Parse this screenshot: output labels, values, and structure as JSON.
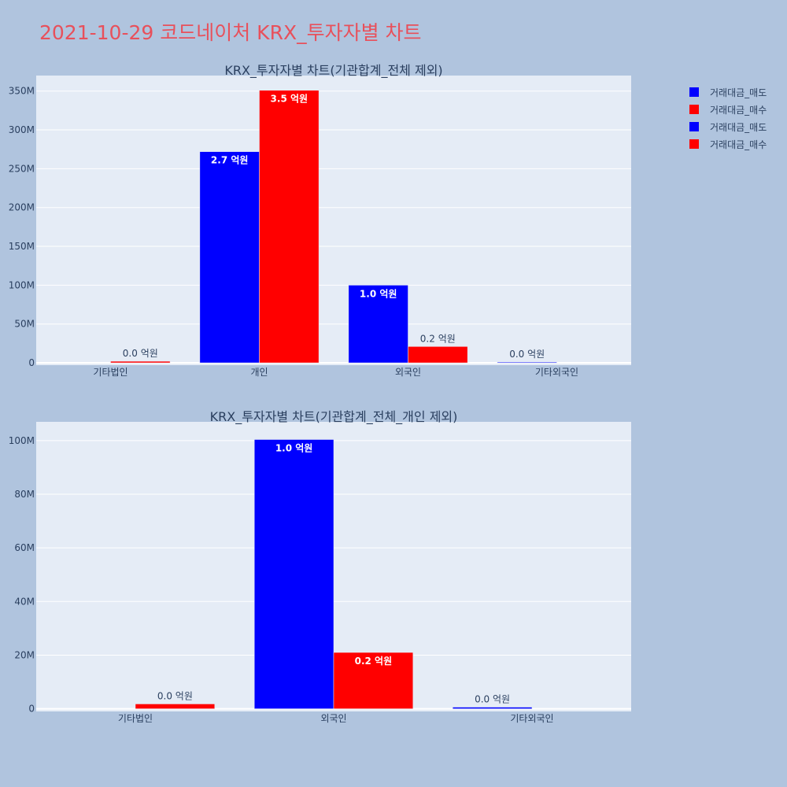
{
  "page": {
    "title": "2021-10-29 코드네이처 KRX_투자자별 차트"
  },
  "legend": {
    "items": [
      {
        "label": "거래대금_매도",
        "color": "#0000ff"
      },
      {
        "label": "거래대금_매수",
        "color": "#ff0000"
      },
      {
        "label": "거래대금_매도",
        "color": "#0000ff"
      },
      {
        "label": "거래대금_매수",
        "color": "#ff0000"
      }
    ]
  },
  "chart_data": [
    {
      "type": "bar",
      "title": "KRX_투자자별 차트(기관합계_전체 제외)",
      "categories": [
        "기타법인",
        "개인",
        "외국인",
        "기타외국인"
      ],
      "series": [
        {
          "name": "거래대금_매도",
          "color": "#0000ff",
          "values": [
            0,
            272000000,
            100000000,
            1000000
          ],
          "labels": [
            "",
            "2.7 억원",
            "1.0 억원",
            "0.0 억원"
          ]
        },
        {
          "name": "거래대금_매수",
          "color": "#ff0000",
          "values": [
            2000000,
            351000000,
            21000000,
            0
          ],
          "labels": [
            "0.0 억원",
            "3.5 억원",
            "0.2 억원",
            ""
          ]
        }
      ],
      "ylim": [
        -3000000,
        370000000
      ],
      "yticks": [
        0,
        50000000,
        100000000,
        150000000,
        200000000,
        250000000,
        300000000,
        350000000
      ],
      "ytick_labels": [
        "0",
        "50M",
        "100M",
        "150M",
        "200M",
        "250M",
        "300M",
        "350M"
      ],
      "grid": true,
      "legend_position": "right"
    },
    {
      "type": "bar",
      "title": "KRX_투자자별 차트(기관합계_전체_개인 제외)",
      "categories": [
        "기타법인",
        "외국인",
        "기타외국인"
      ],
      "series": [
        {
          "name": "거래대금_매도",
          "color": "#0000ff",
          "values": [
            0,
            100400000,
            600000
          ],
          "labels": [
            "",
            "1.0 억원",
            "0.0 억원"
          ]
        },
        {
          "name": "거래대금_매수",
          "color": "#ff0000",
          "values": [
            1800000,
            21000000,
            0
          ],
          "labels": [
            "0.0 억원",
            "0.2 억원",
            ""
          ]
        }
      ],
      "ylim": [
        -1000000,
        107000000
      ],
      "yticks": [
        0,
        20000000,
        40000000,
        60000000,
        80000000,
        100000000
      ],
      "ytick_labels": [
        "0",
        "20M",
        "40M",
        "60M",
        "80M",
        "100M"
      ],
      "grid": true,
      "legend_position": "right"
    }
  ]
}
